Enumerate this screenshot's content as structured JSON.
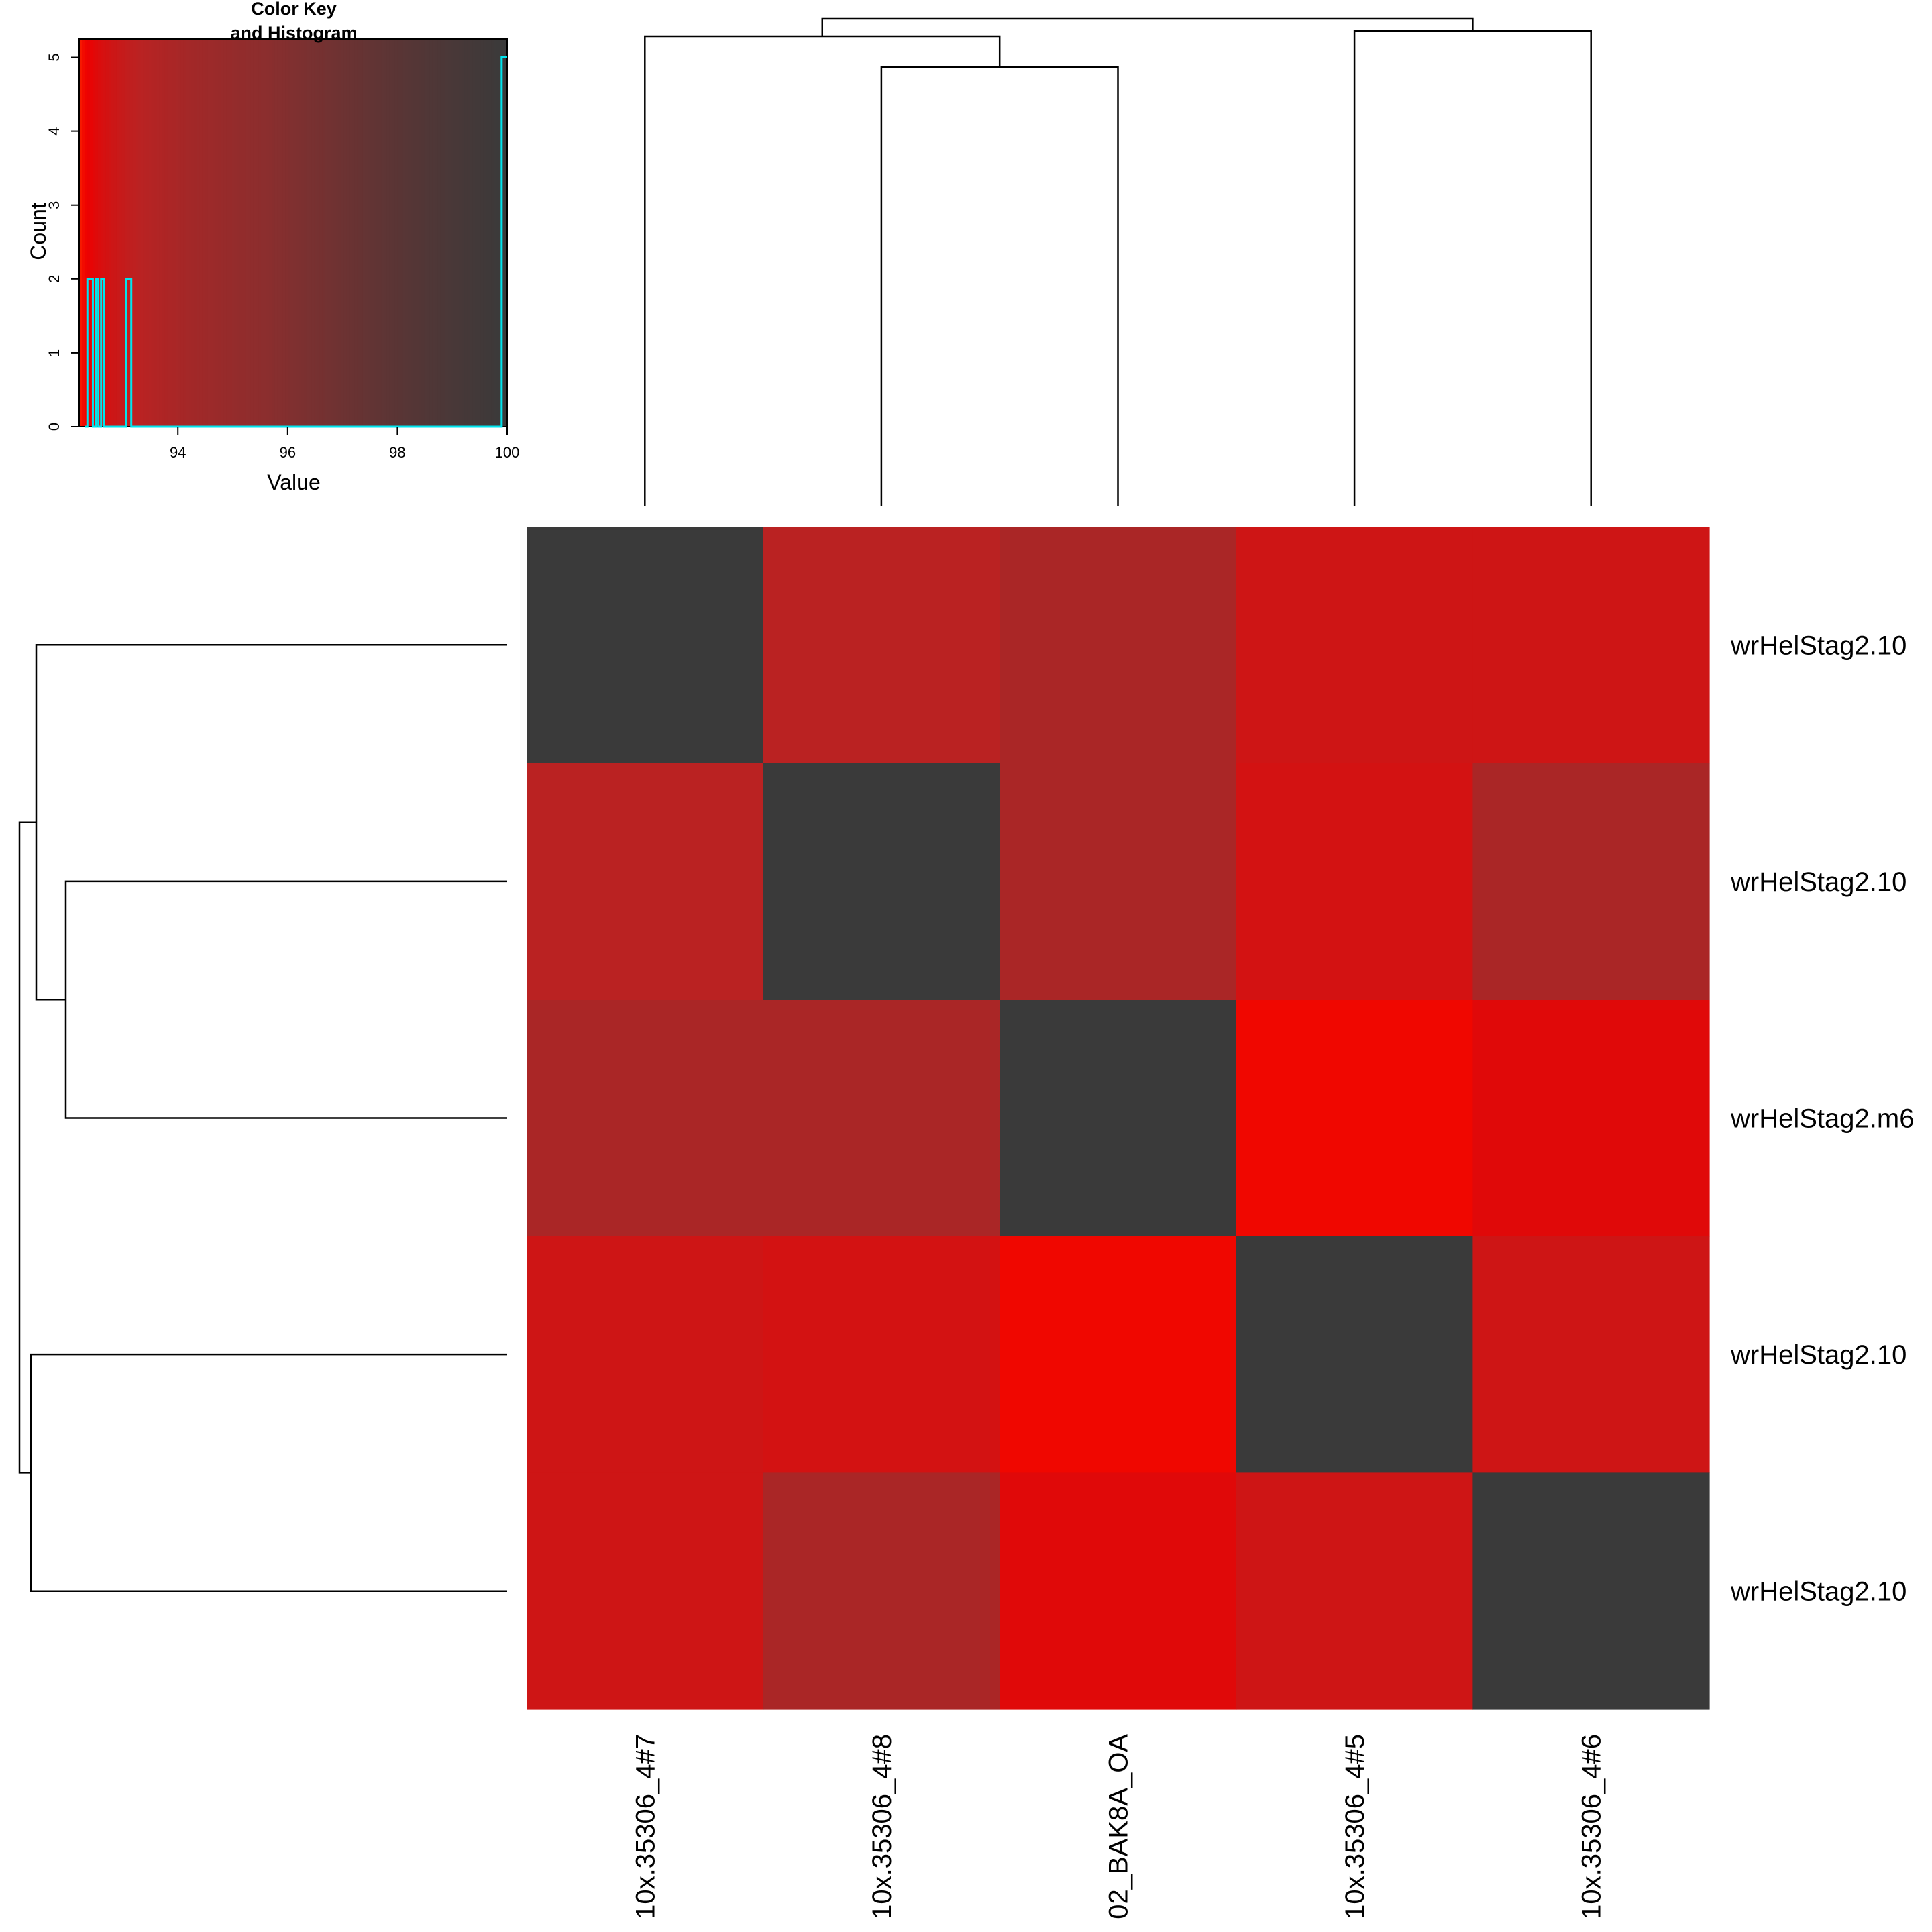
{
  "chart_data": [
    {
      "type": "heatmap",
      "row_labels": [
        "wrHelStag2.10",
        "wrHelStag2.10",
        "wrHelStag2.m6",
        "wrHelStag2.10",
        "wrHelStag2.10"
      ],
      "col_labels": [
        "10x.35306_4#7",
        "10x.35306_4#8",
        "02_BAK8A_OA",
        "10x.35306_4#5",
        "10x.35306_4#6"
      ],
      "values": [
        [
          100.0,
          93.3,
          93.9,
          92.8,
          92.8
        ],
        [
          93.3,
          100.0,
          93.9,
          92.7,
          93.9
        ],
        [
          93.9,
          93.9,
          100.0,
          92.3,
          92.5
        ],
        [
          92.8,
          92.7,
          92.3,
          100.0,
          92.8
        ],
        [
          92.8,
          93.9,
          92.5,
          92.8,
          100.0
        ]
      ],
      "color_scale": [
        "#ff3300",
        "#ee0000",
        "#bb2222",
        "#8b2e2e",
        "#3a3a3a"
      ],
      "row_dendrogram": true,
      "col_dendrogram": true
    },
    {
      "type": "area",
      "title": "Color Key\nand Histogram",
      "xlabel": "Value",
      "ylabel": "Count",
      "xlim": [
        92.2,
        100
      ],
      "ylim": [
        0,
        5.25
      ],
      "x_ticks": [
        94,
        96,
        98,
        100
      ],
      "y_ticks": [
        0,
        1,
        2,
        3,
        4,
        5
      ],
      "histogram": {
        "line_color": "#00e5ee",
        "bins": [
          {
            "from": 92.3,
            "to": 92.35,
            "count": 0
          },
          {
            "from": 92.35,
            "to": 92.45,
            "count": 2
          },
          {
            "from": 92.45,
            "to": 92.5,
            "count": 0
          },
          {
            "from": 92.5,
            "to": 92.55,
            "count": 2
          },
          {
            "from": 92.55,
            "to": 92.6,
            "count": 0
          },
          {
            "from": 92.6,
            "to": 92.65,
            "count": 2
          },
          {
            "from": 92.65,
            "to": 93.05,
            "count": 0
          },
          {
            "from": 93.05,
            "to": 93.15,
            "count": 2
          },
          {
            "from": 93.15,
            "to": 99.9,
            "count": 0
          },
          {
            "from": 99.9,
            "to": 100.0,
            "count": 5
          }
        ]
      }
    }
  ]
}
